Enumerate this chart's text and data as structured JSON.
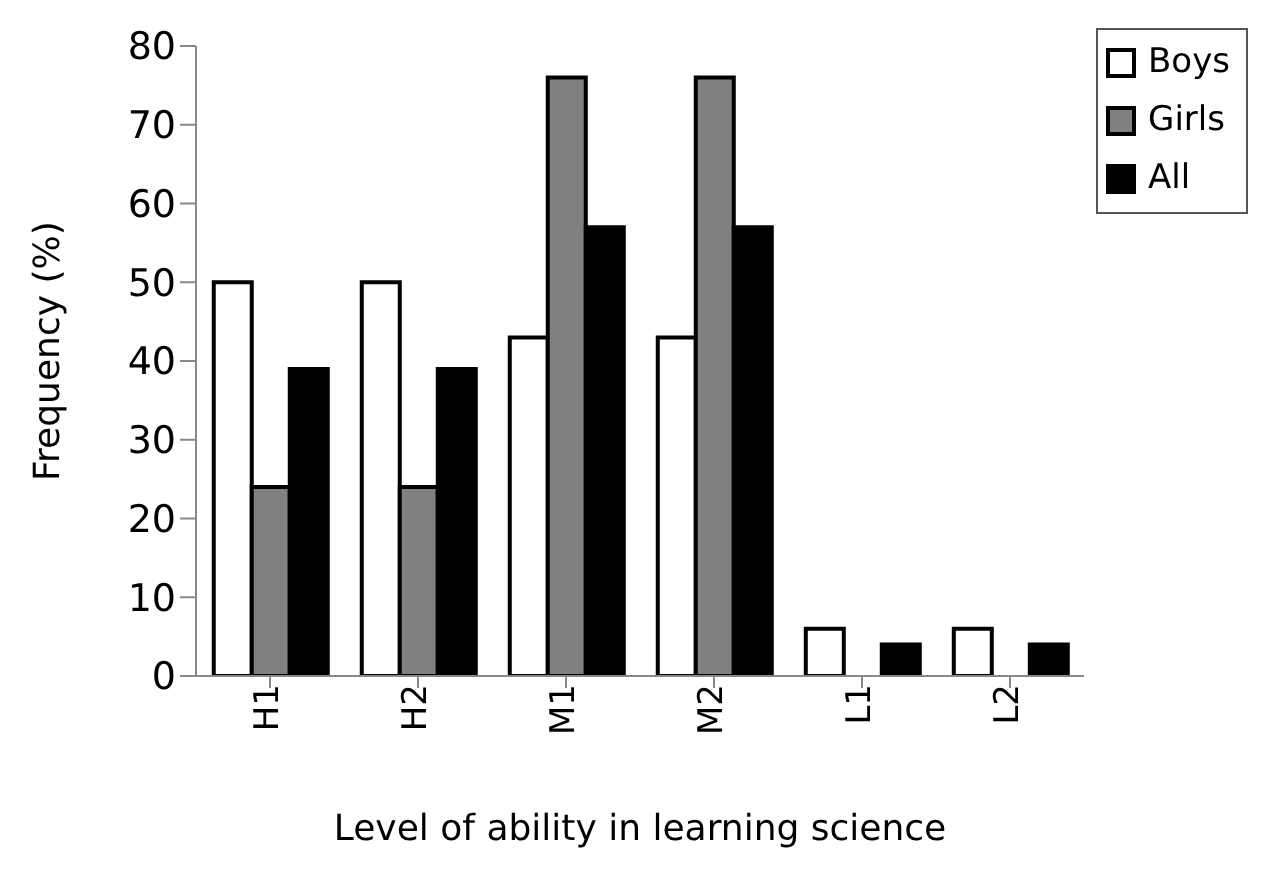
{
  "chart_data": {
    "type": "bar",
    "xlabel": "Level of ability in learning science",
    "ylabel": "Frequency (%)",
    "categories": [
      "H1",
      "H2",
      "M1",
      "M2",
      "L1",
      "L2"
    ],
    "series": [
      {
        "name": "Boys",
        "color": "#ffffff",
        "values": [
          50,
          50,
          43,
          43,
          6,
          6
        ]
      },
      {
        "name": "Girls",
        "color": "#808080",
        "values": [
          24,
          24,
          76,
          76,
          0,
          0
        ]
      },
      {
        "name": "All",
        "color": "#000000",
        "values": [
          39,
          39,
          57,
          57,
          4,
          4
        ]
      }
    ],
    "ylim": [
      0,
      80
    ],
    "yticks": [
      0,
      10,
      20,
      30,
      40,
      50,
      60,
      70,
      80
    ],
    "grid": false,
    "legend": "top right"
  }
}
